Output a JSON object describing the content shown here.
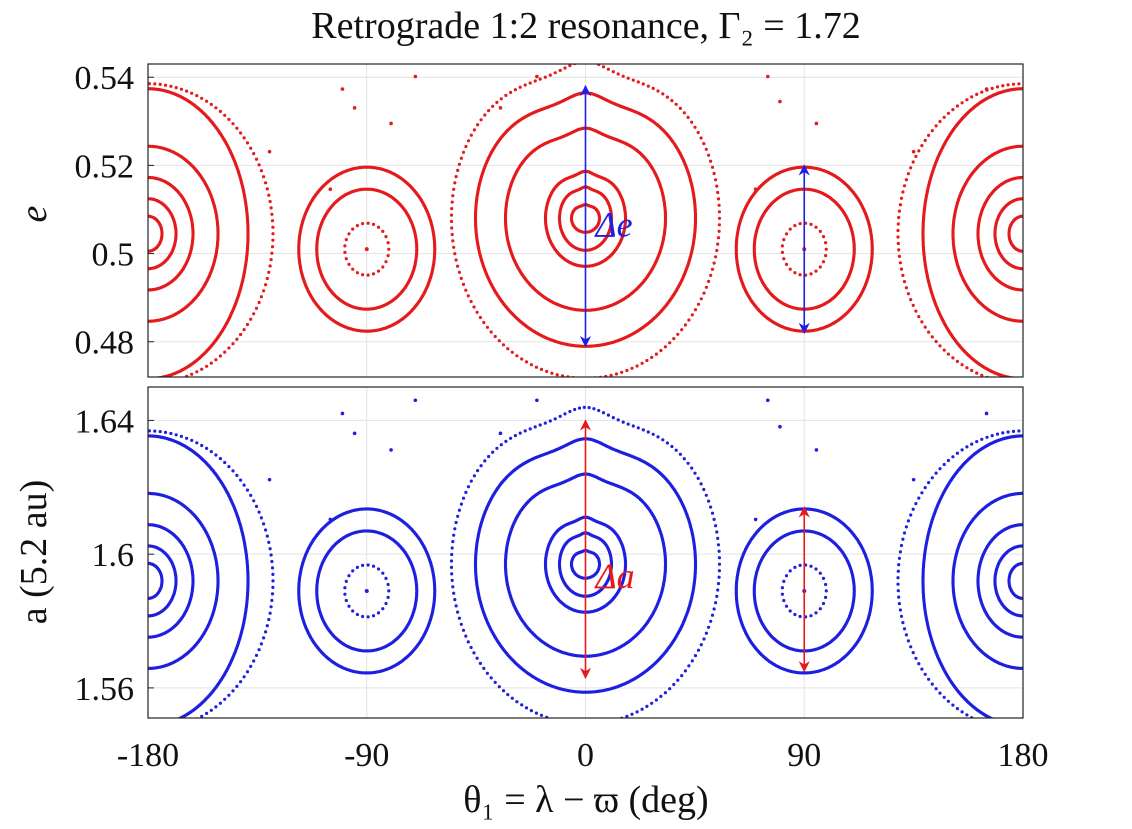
{
  "chart_data": {
    "type": "scatter",
    "title": "Retrograde 1:2 resonance, Γ₂ = 1.72",
    "xlabel": "θ₁ = λ − ϖ (deg)",
    "x_ticks": [
      "-180",
      "-90",
      "0",
      "90",
      "180"
    ],
    "xlim": [
      -180,
      180
    ],
    "panels": [
      {
        "name": "top",
        "ylabel": "e",
        "ylim": [
          0.472,
          0.543
        ],
        "y_ticks": [
          0.48,
          0.5,
          0.52,
          0.54
        ],
        "y_tick_labels": [
          "0.48",
          "0.5",
          "0.52",
          "0.54"
        ],
        "color": "#e41a1c",
        "arrow_color": "#1f1fe0",
        "annotation": "Δe",
        "centers": [
          {
            "theta": -180,
            "value": 0.5045
          },
          {
            "theta": 180,
            "value": 0.5045
          },
          {
            "theta": -90,
            "value": 0.501
          },
          {
            "theta": 90,
            "value": 0.501
          },
          {
            "theta": 0,
            "value": 0.508
          }
        ],
        "arrows": [
          {
            "theta": 0,
            "from": 0.479,
            "to": 0.538
          },
          {
            "theta": 90,
            "from": 0.482,
            "to": 0.52
          }
        ]
      },
      {
        "name": "bottom",
        "ylabel": "a (5.2 au)",
        "ylim": [
          1.551,
          1.65
        ],
        "y_ticks": [
          1.56,
          1.6,
          1.64
        ],
        "y_tick_labels": [
          "1.56",
          "1.6",
          "1.64"
        ],
        "color": "#1f1fe0",
        "arrow_color": "#e41a1c",
        "annotation": "Δa",
        "centers": [
          {
            "theta": -180,
            "value": 1.592
          },
          {
            "theta": 180,
            "value": 1.592
          },
          {
            "theta": -90,
            "value": 1.589
          },
          {
            "theta": 90,
            "value": 1.589
          },
          {
            "theta": 0,
            "value": 1.597
          }
        ],
        "arrows": [
          {
            "theta": 0,
            "from": 1.563,
            "to": 1.64
          },
          {
            "theta": 90,
            "from": 1.565,
            "to": 1.614
          }
        ]
      }
    ]
  }
}
